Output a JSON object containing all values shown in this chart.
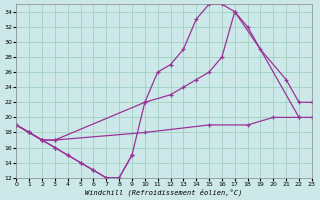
{
  "bg_color": "#cce8e8",
  "line_color": "#993399",
  "grid_color": "#99ccbb",
  "xlabel": "Windchill (Refroidissement éolien,°C)",
  "xlim": [
    0,
    23
  ],
  "ylim": [
    12,
    35
  ],
  "yticks": [
    12,
    14,
    16,
    18,
    20,
    22,
    24,
    26,
    28,
    30,
    32,
    34
  ],
  "xticks": [
    0,
    1,
    2,
    3,
    4,
    5,
    6,
    7,
    8,
    9,
    10,
    11,
    12,
    13,
    14,
    15,
    16,
    17,
    18,
    19,
    20,
    21,
    22,
    23
  ],
  "series": [
    {
      "x": [
        0,
        1,
        2,
        3,
        4,
        5,
        6,
        7,
        8,
        9,
        10,
        11,
        12,
        13,
        14,
        15,
        16,
        17,
        18,
        22
      ],
      "y": [
        19,
        18,
        17,
        16,
        15,
        14,
        13,
        12,
        12,
        15,
        22,
        26,
        27,
        29,
        33,
        35,
        35,
        34,
        32,
        20
      ]
    },
    {
      "x": [
        0,
        1,
        2,
        3,
        10,
        12,
        13,
        14,
        15,
        16,
        17,
        19,
        21,
        22,
        23
      ],
      "y": [
        19,
        18,
        17,
        17,
        22,
        23,
        24,
        25,
        26,
        28,
        34,
        29,
        25,
        22,
        22
      ]
    },
    {
      "x": [
        0,
        1,
        2,
        3,
        10,
        15,
        18,
        20,
        22,
        23
      ],
      "y": [
        19,
        18,
        17,
        17,
        18,
        19,
        19,
        20,
        20,
        20
      ]
    },
    {
      "x": [
        0,
        1,
        2,
        3,
        4,
        5,
        6,
        7,
        8,
        9
      ],
      "y": [
        19,
        18,
        17,
        16,
        15,
        14,
        13,
        12,
        12,
        15
      ]
    }
  ]
}
